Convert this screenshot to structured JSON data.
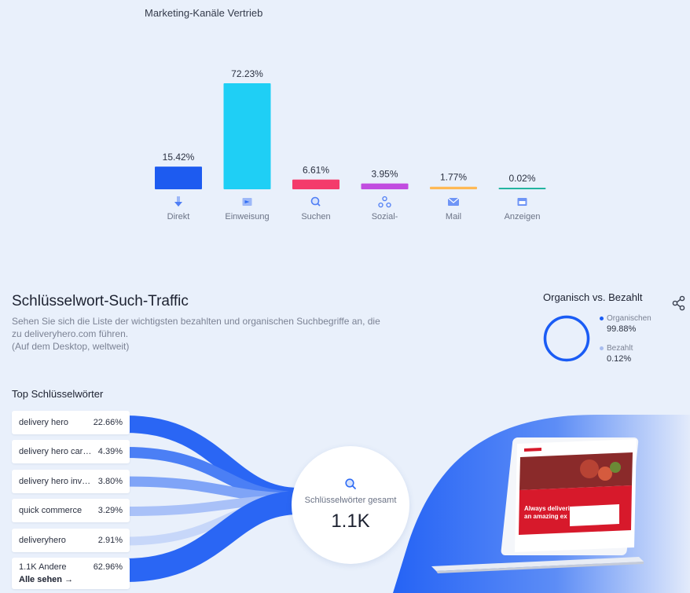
{
  "colors": {
    "background": "#e9f0fb",
    "accent": "#1a5cf5",
    "direkt": "#1d5bf0",
    "einweisung": "#1fcff5",
    "suchen": "#f43b6b",
    "sozial": "#c14ce0",
    "mail": "#ffb955",
    "anzeigen": "#23b4a0"
  },
  "marketing": {
    "title": "Marketing-Kanäle Vertrieb"
  },
  "chart_data": {
    "type": "bar",
    "title": "Marketing-Kanäle Vertrieb",
    "categories": [
      "Direkt",
      "Einweisung",
      "Suchen",
      "Sozial-",
      "Mail",
      "Anzeigen"
    ],
    "values": [
      15.42,
      72.23,
      6.61,
      3.95,
      1.77,
      0.02
    ],
    "value_labels": [
      "15.42%",
      "72.23%",
      "6.61%",
      "3.95%",
      "1.77%",
      "0.02%"
    ],
    "icons": [
      "direct-arrow-icon",
      "referral-icon",
      "search-icon",
      "social-icon",
      "mail-icon",
      "ads-icon"
    ],
    "colors": [
      "#1d5bf0",
      "#1fcff5",
      "#f43b6b",
      "#c14ce0",
      "#ffb955",
      "#23b4a0"
    ],
    "ylim": [
      0,
      72.23
    ],
    "grid": false
  },
  "keywords": {
    "title": "Schlüsselwort-Such-Traffic",
    "description": "Sehen Sie sich die Liste der wichtigsten bezahlten und organischen Suchbegriffe an, die zu deliveryhero.com führen.",
    "note": "(Auf dem Desktop, weltweit)",
    "share_icon": "share-icon"
  },
  "organic_vs_paid": {
    "title": "Organisch vs. Bezahlt",
    "organic_label": "Organischen",
    "organic_value": "99.88%",
    "organic_fraction": 0.9988,
    "paid_label": "Bezahlt",
    "paid_value": "0.12%",
    "organic_color": "#1a5cf5",
    "paid_color": "#a8bdf0"
  },
  "top_keywords": {
    "title": "Top Schlüsselwörter",
    "items": [
      {
        "name": "delivery hero",
        "pct": "22.66%"
      },
      {
        "name": "delivery hero car…",
        "pct": "4.39%"
      },
      {
        "name": "delivery hero inv…",
        "pct": "3.80%"
      },
      {
        "name": "quick commerce",
        "pct": "3.29%"
      },
      {
        "name": "deliveryhero",
        "pct": "2.91%"
      }
    ],
    "others_name": "1.1K Andere",
    "others_pct": "62.96%",
    "see_all": "Alle sehen →"
  },
  "total": {
    "label": "Schlüsselwörter gesamt",
    "value": "1.1K"
  },
  "laptop": {
    "headline_1": "Always delivering",
    "headline_2": "an amazing ex"
  }
}
